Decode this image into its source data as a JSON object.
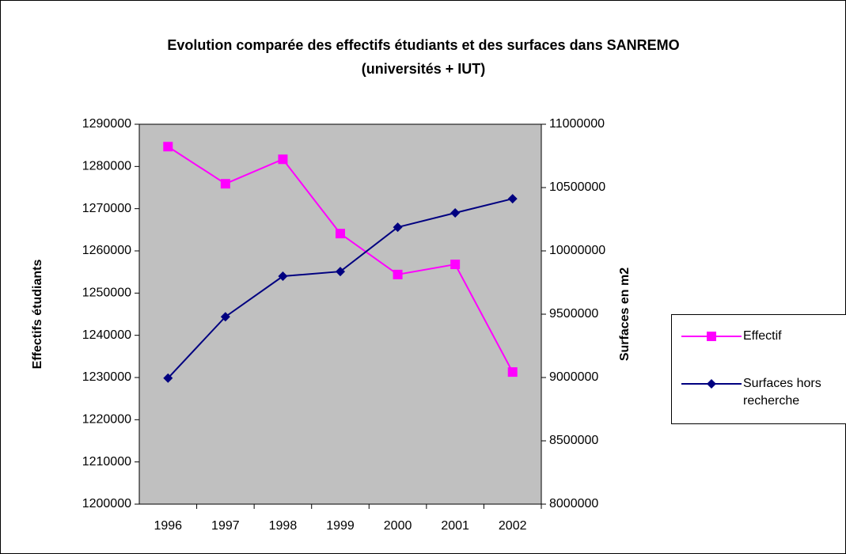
{
  "chart_data": {
    "type": "line",
    "title": "Evolution comparée des effectifs étudiants et des surfaces dans SANREMO (universités + IUT)",
    "ylabel": "Effectifs étudiants",
    "y2label": "Surfaces en m2",
    "categories": [
      "1996",
      "1997",
      "1998",
      "1999",
      "2000",
      "2001",
      "2002"
    ],
    "series": [
      {
        "name": "Effectif",
        "color": "#ff00ff",
        "marker": "square",
        "values": [
          1284700,
          1275900,
          1281700,
          1264100,
          1254400,
          1256800,
          1231300
        ]
      },
      {
        "name": "Surfaces hors recherche",
        "color": "#000080",
        "marker": "diamond",
        "axis": "y2",
        "values": [
          8995000,
          9480000,
          9800000,
          9837000,
          10187000,
          10300000,
          10412000
        ]
      }
    ],
    "ylim": [
      1200000,
      1290000
    ],
    "yticks": [
      1200000,
      1210000,
      1220000,
      1230000,
      1240000,
      1250000,
      1260000,
      1270000,
      1280000,
      1290000
    ],
    "y2lim": [
      8000000,
      11000000
    ],
    "y2ticks": [
      8000000,
      8500000,
      9000000,
      9500000,
      10000000,
      10500000,
      11000000
    ],
    "plot_background": "#c0c0c0",
    "grid": false,
    "legend": "right"
  }
}
